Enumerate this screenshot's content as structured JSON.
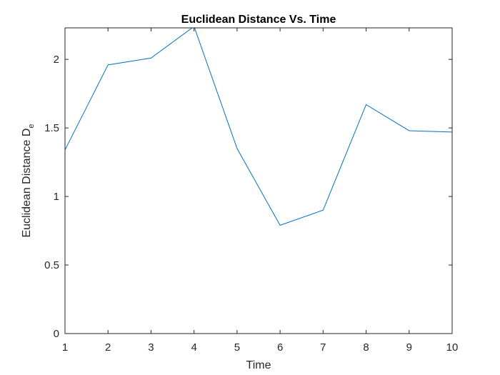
{
  "chart_data": {
    "type": "line",
    "title": "Euclidean Distance Vs. Time",
    "xlabel": "Time",
    "ylabel": "Euclidean Distance D",
    "ylabel_subscript": "e",
    "xlim": [
      1,
      10
    ],
    "ylim": [
      0,
      2.23
    ],
    "xticks": [
      1,
      2,
      3,
      4,
      5,
      6,
      7,
      8,
      9,
      10
    ],
    "yticks": [
      0,
      0.5,
      1,
      1.5,
      2
    ],
    "ytick_labels": [
      "0",
      "0.5",
      "1",
      "1.5",
      "2"
    ],
    "grid": false,
    "line_color": "#0072BD",
    "x": [
      1,
      2,
      3,
      4,
      5,
      6,
      7,
      8,
      9,
      10
    ],
    "y": [
      1.34,
      1.96,
      2.01,
      2.24,
      1.35,
      0.79,
      0.9,
      1.67,
      1.48,
      1.47
    ]
  }
}
